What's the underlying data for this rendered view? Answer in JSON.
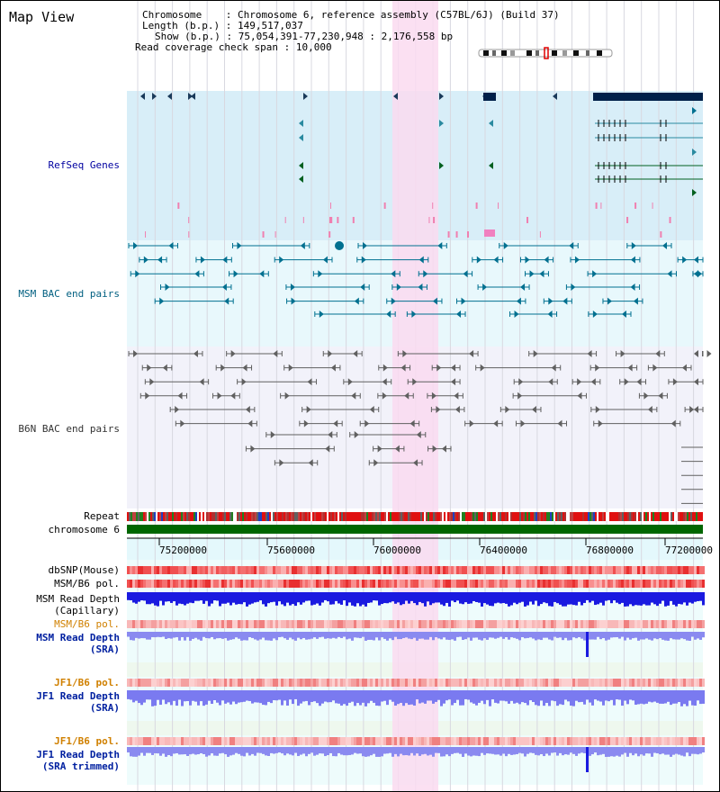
{
  "title": "Map View",
  "info": {
    "chromosome_key": "Chromosome",
    "chromosome_val": "Chromosome 6, reference assembly (C57BL/6J) (Build 37)",
    "length_key": "Length (b.p.)",
    "length_val": "149,517,037",
    "show_key": "Show (b.p.)",
    "show_val": "75,054,391-77,230,948 : 2,176,558 bp",
    "span_key": "Read coverage check span",
    "span_val": "10,000"
  },
  "tracks": {
    "refseq": "RefSeq Genes",
    "msm_bac": "MSM BAC end pairs",
    "b6n_bac": "B6N BAC end pairs",
    "repeat": "Repeat",
    "chromosome": "chromosome 6",
    "dbsnp": "dbSNP(Mouse)",
    "msm_b6_pol": "MSM/B6 pol.",
    "msm_read_depth_cap_1": "MSM Read Depth",
    "msm_read_depth_cap_2": "(Capillary)",
    "msm_b6_pol_2": "MSM/B6 pol.",
    "msm_read_depth_sra_1": "MSM Read Depth",
    "msm_read_depth_sra_2": "(SRA)",
    "jf1_b6_pol": "JF1/B6 pol.",
    "jf1_read_depth_sra_1": "JF1 Read Depth",
    "jf1_read_depth_sra_2": "(SRA)",
    "jf1_b6_pol_2": "JF1/B6 pol.",
    "jf1_read_depth_trim_1": "JF1 Read Depth",
    "jf1_read_depth_trim_2": "(SRA trimmed)"
  },
  "ruler": {
    "ticks": [
      "75200000",
      "75600000",
      "76000000",
      "76400000",
      "76800000",
      "77200000"
    ]
  },
  "colors": {
    "highlight": "#fadaf0",
    "refseq_bg": "#d8eef8",
    "msm_bg": "#e8f8fc",
    "b6n_bg": "#f2f2fa",
    "gene": "#006020",
    "msm_feature": "#007090",
    "b6n_feature": "#606060",
    "depth_blue": "#1a1ae0",
    "depth_light": "#7a7af0",
    "chromosome_green": "#006600"
  }
}
